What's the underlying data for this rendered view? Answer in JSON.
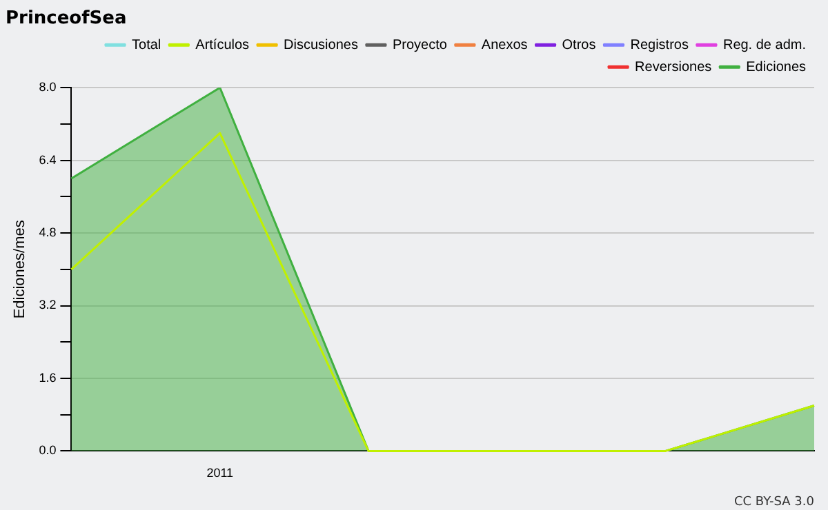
{
  "chart_data": {
    "type": "line",
    "title": "PrinceofSea",
    "ylabel": "Ediciones/mes",
    "categories": [
      null,
      "2011",
      null,
      null,
      null,
      null
    ],
    "series": [
      {
        "name": "Total",
        "color": "#80e0e0",
        "values": [
          null,
          null,
          null,
          null,
          null,
          null
        ]
      },
      {
        "name": "Ediciones",
        "color": "#40b040",
        "type": "area",
        "values": [
          6,
          8,
          0,
          0,
          0,
          1
        ]
      },
      {
        "name": "Artículos",
        "color": "#c0f000",
        "values": [
          4,
          7,
          0,
          0,
          0,
          1
        ]
      },
      {
        "name": "Discusiones",
        "color": "#f0c000",
        "values": [
          null,
          null,
          null,
          null,
          null,
          null
        ]
      },
      {
        "name": "Proyecto",
        "color": "#606060",
        "values": [
          null,
          null,
          null,
          null,
          null,
          null
        ]
      },
      {
        "name": "Anexos",
        "color": "#f08040",
        "values": [
          null,
          null,
          null,
          null,
          null,
          null
        ]
      },
      {
        "name": "Otros",
        "color": "#8020e0",
        "values": [
          null,
          null,
          null,
          null,
          null,
          null
        ]
      },
      {
        "name": "Registros",
        "color": "#8080ff",
        "values": [
          null,
          null,
          null,
          null,
          null,
          null
        ]
      },
      {
        "name": "Reg. de adm.",
        "color": "#e040e0",
        "values": [
          null,
          null,
          null,
          null,
          null,
          null
        ]
      },
      {
        "name": "Reversiones",
        "color": "#f03030",
        "values": [
          null,
          null,
          null,
          null,
          null,
          null
        ]
      }
    ],
    "ylim": [
      0,
      8
    ],
    "yticks": [
      {
        "value": 0,
        "label": "0.0"
      },
      {
        "value": 0.8,
        "label": null
      },
      {
        "value": 1.6,
        "label": "1.6"
      },
      {
        "value": 2.4,
        "label": null
      },
      {
        "value": 3.2,
        "label": "3.2"
      },
      {
        "value": 4,
        "label": null
      },
      {
        "value": 4.8,
        "label": "4.8"
      },
      {
        "value": 5.6,
        "label": null
      },
      {
        "value": 6.4,
        "label": "6.4"
      },
      {
        "value": 7.2,
        "label": null
      },
      {
        "value": 8,
        "label": "8.0"
      }
    ],
    "grid": "y",
    "legend": "top right",
    "marker": "none",
    "annotations": [
      "CC BY-SA 3.0"
    ]
  }
}
